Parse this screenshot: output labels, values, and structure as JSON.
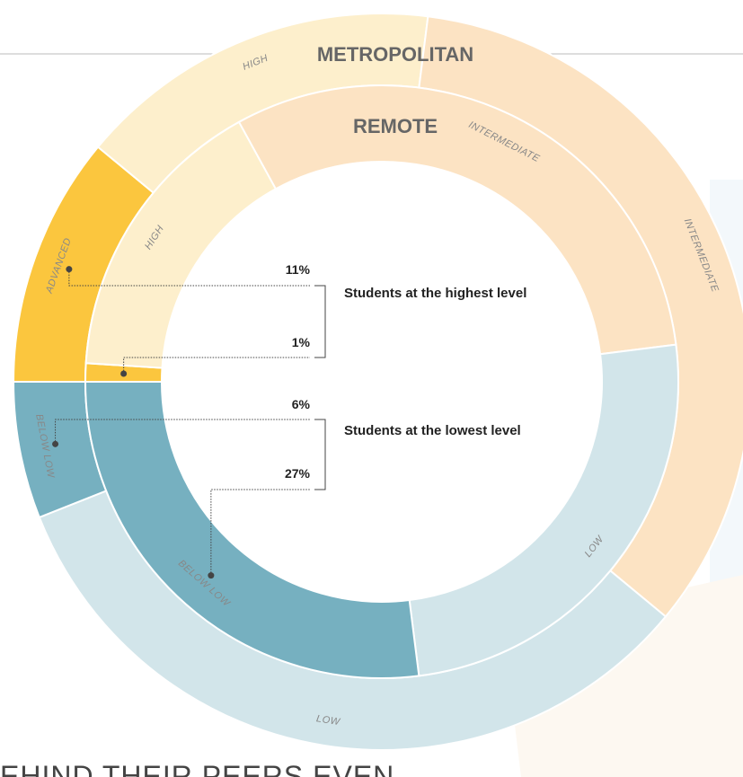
{
  "chart_data": {
    "type": "nested-donut",
    "rings": [
      {
        "name": "METROPOLITAN",
        "categories": [
          "ADVANCED",
          "HIGH",
          "INTERMEDIATE",
          "LOW",
          "BELOW LOW"
        ],
        "values": [
          11,
          16,
          34,
          33,
          6
        ],
        "value_labels": [
          "11%",
          null,
          null,
          null,
          "6%"
        ]
      },
      {
        "name": "REMOTE",
        "categories": [
          null,
          "HIGH",
          "INTERMEDIATE",
          "LOW",
          "BELOW LOW"
        ],
        "values": [
          1,
          16,
          31,
          25,
          27
        ],
        "value_labels": [
          "1%",
          null,
          null,
          null,
          "27%"
        ]
      }
    ],
    "colors": [
      "#fbc63e",
      "#fdefcc",
      "#fce3c3",
      "#d2e5ea",
      "#76b0c0"
    ],
    "annotations": [
      "Students at the highest level",
      "Students at the lowest level"
    ],
    "footer": "EHIND THEIR PEERS EVEN"
  }
}
